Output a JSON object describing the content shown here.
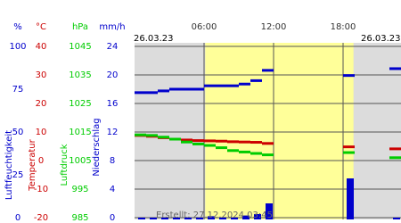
{
  "chart_data": {
    "type": "line",
    "start_date": "26.03.23",
    "end_date": "26.03.23",
    "footer": "Erstellt: 27.12.2024 03:45",
    "x": [
      0,
      1,
      2,
      3,
      4,
      5,
      6,
      7,
      8,
      9,
      10,
      11,
      12,
      13,
      14,
      15,
      16,
      17,
      18,
      19,
      20,
      21,
      22
    ],
    "xlim": [
      0,
      23
    ],
    "xticks": [
      {
        "value": 6,
        "label": "06:00"
      },
      {
        "value": 12,
        "label": "12:00"
      },
      {
        "value": 18,
        "label": "18:00"
      }
    ],
    "daylight": [
      6.1,
      18.9
    ],
    "axes": [
      {
        "title": "%",
        "label": "Luftfeuchtigkeit",
        "color": "#0000cc",
        "ylim": [
          0,
          100
        ],
        "yticks": [
          0,
          25,
          50,
          75,
          100
        ]
      },
      {
        "title": "°C",
        "label": "Temperatur",
        "color": "#cc0000",
        "ylim": [
          -20,
          40
        ],
        "yticks": [
          -20,
          -10,
          0,
          10,
          20,
          30,
          40
        ]
      },
      {
        "title": "hPa",
        "label": "Luftdruck",
        "color": "#00cc00",
        "ylim": [
          985,
          1045
        ],
        "yticks": [
          985,
          995,
          1005,
          1015,
          1025,
          1035,
          1045
        ]
      },
      {
        "title": "mm/h",
        "label": "Niederschlag",
        "color": "#0000cc",
        "ylim": [
          0,
          24
        ],
        "yticks": [
          0,
          4,
          8,
          12,
          16,
          20,
          24
        ]
      }
    ],
    "series": [
      {
        "axis": 0,
        "style": "line",
        "color": "#0000cc",
        "values": [
          73,
          73,
          74,
          75,
          75,
          75,
          77,
          77,
          77,
          78,
          80,
          86,
          null,
          null,
          null,
          null,
          null,
          null,
          83,
          null,
          null,
          null,
          87
        ]
      },
      {
        "axis": 1,
        "style": "line",
        "color": "#cc0000",
        "values": [
          8.8,
          8.5,
          8,
          7.5,
          7.2,
          7,
          6.9,
          6.8,
          6.6,
          6.5,
          6.4,
          6,
          null,
          null,
          null,
          null,
          null,
          null,
          4.8,
          null,
          null,
          null,
          4.1
        ]
      },
      {
        "axis": 2,
        "style": "line",
        "color": "#00cc00",
        "values": [
          1014,
          1013.8,
          1013.2,
          1012.5,
          1011.5,
          1010.8,
          1010.3,
          1009.5,
          1008.5,
          1008,
          1007.5,
          1007,
          null,
          null,
          null,
          null,
          null,
          null,
          1007.8,
          null,
          null,
          null,
          1006
        ]
      },
      {
        "axis": 3,
        "style": "bar",
        "color": "#0000cc",
        "values": [
          0,
          0,
          0,
          0,
          0,
          0,
          0.2,
          0,
          0,
          0.3,
          0.5,
          2,
          null,
          null,
          null,
          null,
          null,
          null,
          5.5,
          null,
          null,
          null,
          0
        ]
      }
    ]
  }
}
